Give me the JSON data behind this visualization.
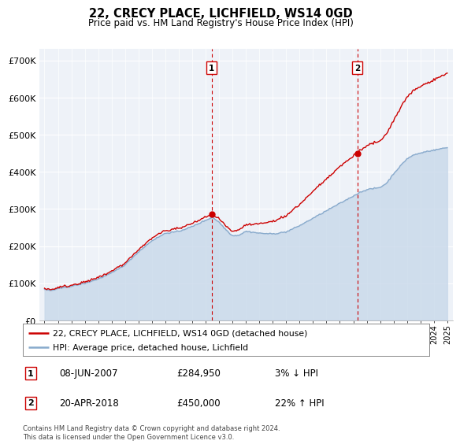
{
  "title": "22, CRECY PLACE, LICHFIELD, WS14 0GD",
  "subtitle": "Price paid vs. HM Land Registry's House Price Index (HPI)",
  "ylabel_ticks": [
    "£0",
    "£100K",
    "£200K",
    "£300K",
    "£400K",
    "£500K",
    "£600K",
    "£700K"
  ],
  "ytick_values": [
    0,
    100000,
    200000,
    300000,
    400000,
    500000,
    600000,
    700000
  ],
  "ylim": [
    0,
    730000
  ],
  "xlim_start": 1994.6,
  "xlim_end": 2025.4,
  "legend_line1": "22, CRECY PLACE, LICHFIELD, WS14 0GD (detached house)",
  "legend_line2": "HPI: Average price, detached house, Lichfield",
  "sale1_date": "08-JUN-2007",
  "sale1_price": "£284,950",
  "sale1_pct": "3% ↓ HPI",
  "sale2_date": "20-APR-2018",
  "sale2_price": "£450,000",
  "sale2_pct": "22% ↑ HPI",
  "footer": "Contains HM Land Registry data © Crown copyright and database right 2024.\nThis data is licensed under the Open Government Licence v3.0.",
  "sale1_x": 2007.44,
  "sale1_y": 284950,
  "sale2_x": 2018.3,
  "sale2_y": 450000,
  "price_color": "#cc0000",
  "hpi_color": "#88aacc",
  "hpi_fill_color": "#c8d8ea",
  "vline_color": "#cc0000",
  "bg_color": "#eef2f8",
  "grid_color": "#ffffff",
  "box_color": "#cc0000"
}
